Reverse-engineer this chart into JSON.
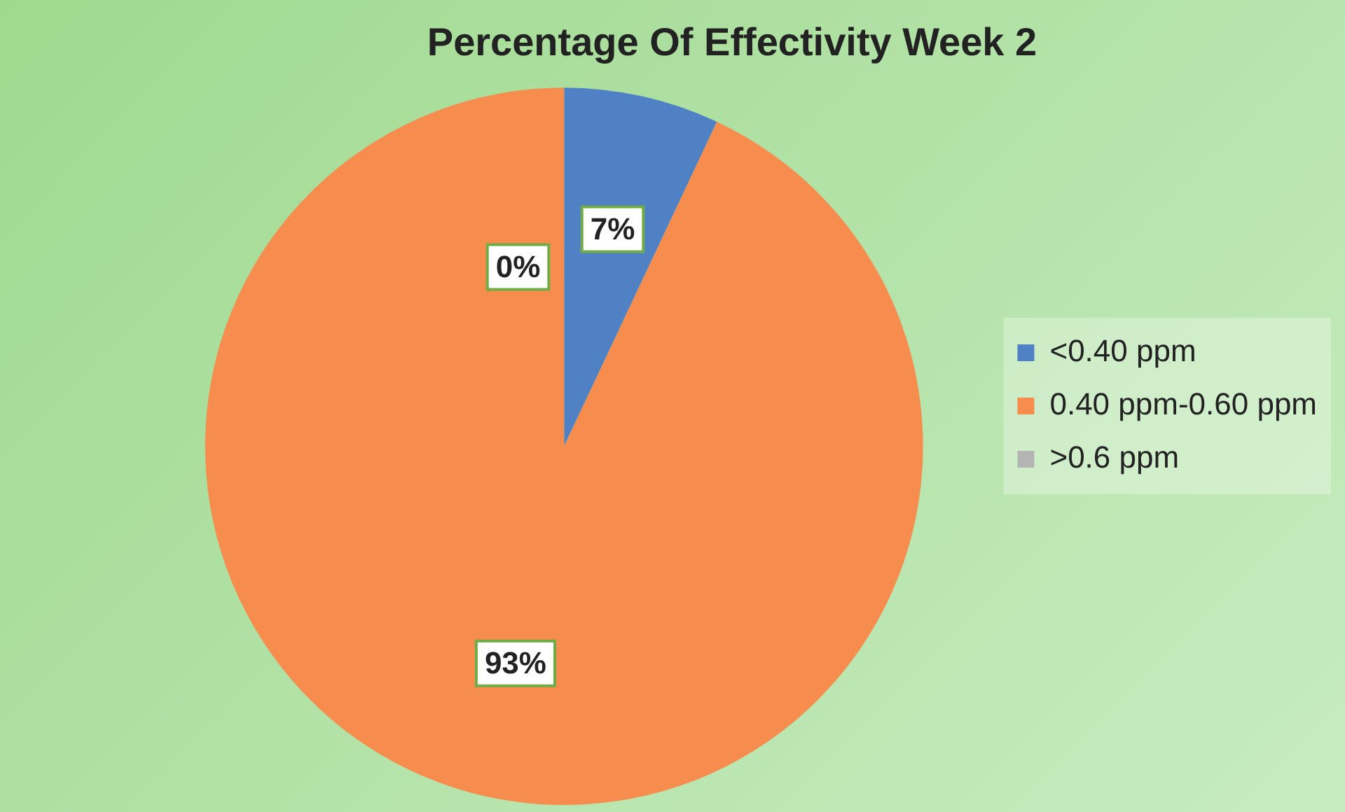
{
  "chart_data": {
    "type": "pie",
    "title": "Percentage Of Effectivity Week 2",
    "categories": [
      "<0.40 ppm",
      "0.40 ppm-0.60 ppm",
      ">0.6 ppm"
    ],
    "values": [
      7,
      93,
      0
    ],
    "colors": [
      "#4f81c4",
      "#f68d4e",
      "#b4b4b4"
    ],
    "value_labels": [
      "7%",
      "93%",
      "0%"
    ],
    "legend": "right"
  }
}
